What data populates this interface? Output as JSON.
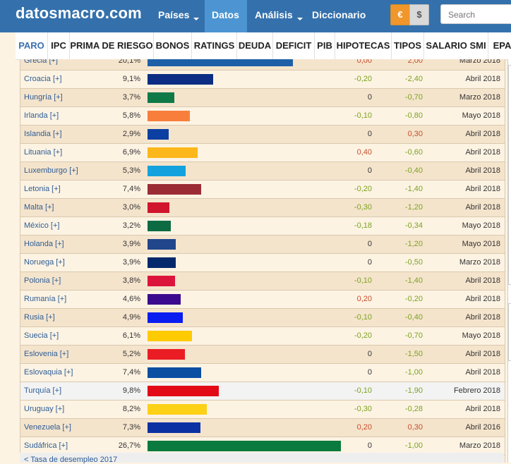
{
  "header": {
    "logo": "datosmacro.com",
    "nav": [
      {
        "label": "Países",
        "caret": true
      },
      {
        "label": "Datos",
        "caret": true,
        "active": true
      },
      {
        "label": "Análisis",
        "caret": true
      },
      {
        "label": "Diccionario",
        "caret": false
      }
    ],
    "currency_euro": "€",
    "currency_dollar": "$",
    "search_placeholder": "Search",
    "colors": {
      "bar": "#3471ac",
      "active": "#4c95d2",
      "euro": "#f0962b"
    }
  },
  "subnav": [
    "PARO",
    "IPC",
    "PRIMA DE RIESGO",
    "BONOS",
    "RATINGS",
    "DEUDA",
    "DEFICIT",
    "PIB",
    "HIPOTECAS",
    "TIPOS",
    "SALARIO SMI",
    "EPA"
  ],
  "table": {
    "partial_top_row": {
      "name": "Grecia [+]",
      "value": "20,1%",
      "ch1": "0,00",
      "ch2": "2,00",
      "date": "Marzo 2018",
      "bar_color": "#1f5fa8",
      "bar_frac": 0.7528
    },
    "rows": [
      {
        "name": "Croacia [+]",
        "value": "9,1%",
        "ch1": "-0,20",
        "ch2": "-2,40",
        "date": "Abril 2018",
        "bar_color": "#0c2d83",
        "bar_frac": 0.3408
      },
      {
        "name": "Hungría [+]",
        "value": "3,7%",
        "ch1": "0",
        "ch2": "-0,70",
        "date": "Marzo 2018",
        "bar_color": "#0f7a48",
        "bar_frac": 0.1386
      },
      {
        "name": "Irlanda [+]",
        "value": "5,8%",
        "ch1": "-0,10",
        "ch2": "-0,80",
        "date": "Mayo 2018",
        "bar_color": "#f77f3b",
        "bar_frac": 0.2172
      },
      {
        "name": "Islandia [+]",
        "value": "2,9%",
        "ch1": "0",
        "ch2": "0,30",
        "date": "Abril 2018",
        "bar_color": "#0b3fa1",
        "bar_frac": 0.1086
      },
      {
        "name": "Lituania [+]",
        "value": "6,9%",
        "ch1": "0,40",
        "ch2": "-0,60",
        "date": "Abril 2018",
        "bar_color": "#fcb71b",
        "bar_frac": 0.2584
      },
      {
        "name": "Luxemburgo [+]",
        "value": "5,3%",
        "ch1": "0",
        "ch2": "-0,40",
        "date": "Abril 2018",
        "bar_color": "#14a2de",
        "bar_frac": 0.1985
      },
      {
        "name": "Letonia [+]",
        "value": "7,4%",
        "ch1": "-0,20",
        "ch2": "-1,40",
        "date": "Abril 2018",
        "bar_color": "#9b2c36",
        "bar_frac": 0.2772
      },
      {
        "name": "Malta [+]",
        "value": "3,0%",
        "ch1": "-0,30",
        "ch2": "-1,20",
        "date": "Abril 2018",
        "bar_color": "#d0142c",
        "bar_frac": 0.1124
      },
      {
        "name": "México [+]",
        "value": "3,2%",
        "ch1": "-0,18",
        "ch2": "-0,34",
        "date": "Mayo 2018",
        "bar_color": "#0d6b43",
        "bar_frac": 0.1199
      },
      {
        "name": "Holanda [+]",
        "value": "3,9%",
        "ch1": "0",
        "ch2": "-1,20",
        "date": "Mayo 2018",
        "bar_color": "#21468b",
        "bar_frac": 0.1461
      },
      {
        "name": "Noruega [+]",
        "value": "3,9%",
        "ch1": "0",
        "ch2": "-0,50",
        "date": "Marzo 2018",
        "bar_color": "#04286b",
        "bar_frac": 0.1461
      },
      {
        "name": "Polonia [+]",
        "value": "3,8%",
        "ch1": "-0,10",
        "ch2": "-1,40",
        "date": "Abril 2018",
        "bar_color": "#dc143c",
        "bar_frac": 0.1423
      },
      {
        "name": "Rumanía [+]",
        "value": "4,6%",
        "ch1": "0,20",
        "ch2": "-0,20",
        "date": "Abril 2018",
        "bar_color": "#3c0a8e",
        "bar_frac": 0.1723
      },
      {
        "name": "Rusia [+]",
        "value": "4,9%",
        "ch1": "-0,10",
        "ch2": "-0,40",
        "date": "Abril 2018",
        "bar_color": "#0a1df0",
        "bar_frac": 0.1835
      },
      {
        "name": "Suecia [+]",
        "value": "6,1%",
        "ch1": "-0,20",
        "ch2": "-0,70",
        "date": "Mayo 2018",
        "bar_color": "#fecb00",
        "bar_frac": 0.2285
      },
      {
        "name": "Eslovenia [+]",
        "value": "5,2%",
        "ch1": "0",
        "ch2": "-1,50",
        "date": "Abril 2018",
        "bar_color": "#ea1c24",
        "bar_frac": 0.1948
      },
      {
        "name": "Eslovaquia [+]",
        "value": "7,4%",
        "ch1": "0",
        "ch2": "-1,00",
        "date": "Abril 2018",
        "bar_color": "#0b4ea2",
        "bar_frac": 0.2772
      },
      {
        "name": "Turquía [+]",
        "value": "9,8%",
        "ch1": "-0,10",
        "ch2": "-1,90",
        "date": "Febrero 2018",
        "bar_color": "#e30a17",
        "bar_frac": 0.367,
        "highlight": true
      },
      {
        "name": "Uruguay [+]",
        "value": "8,2%",
        "ch1": "-0,30",
        "ch2": "-0,28",
        "date": "Abril 2018",
        "bar_color": "#fcd116",
        "bar_frac": 0.3071
      },
      {
        "name": "Venezuela [+]",
        "value": "7,3%",
        "ch1": "0,20",
        "ch2": "0,30",
        "date": "Abril 2016",
        "bar_color": "#0b31a3",
        "bar_frac": 0.2734
      },
      {
        "name": "Sudáfrica [+]",
        "value": "26,7%",
        "ch1": "0",
        "ch2": "-1,00",
        "date": "Marzo 2018",
        "bar_color": "#0b7a3e",
        "bar_frac": 1.0
      }
    ]
  },
  "footer_link": "< Tasa de desempleo 2017"
}
